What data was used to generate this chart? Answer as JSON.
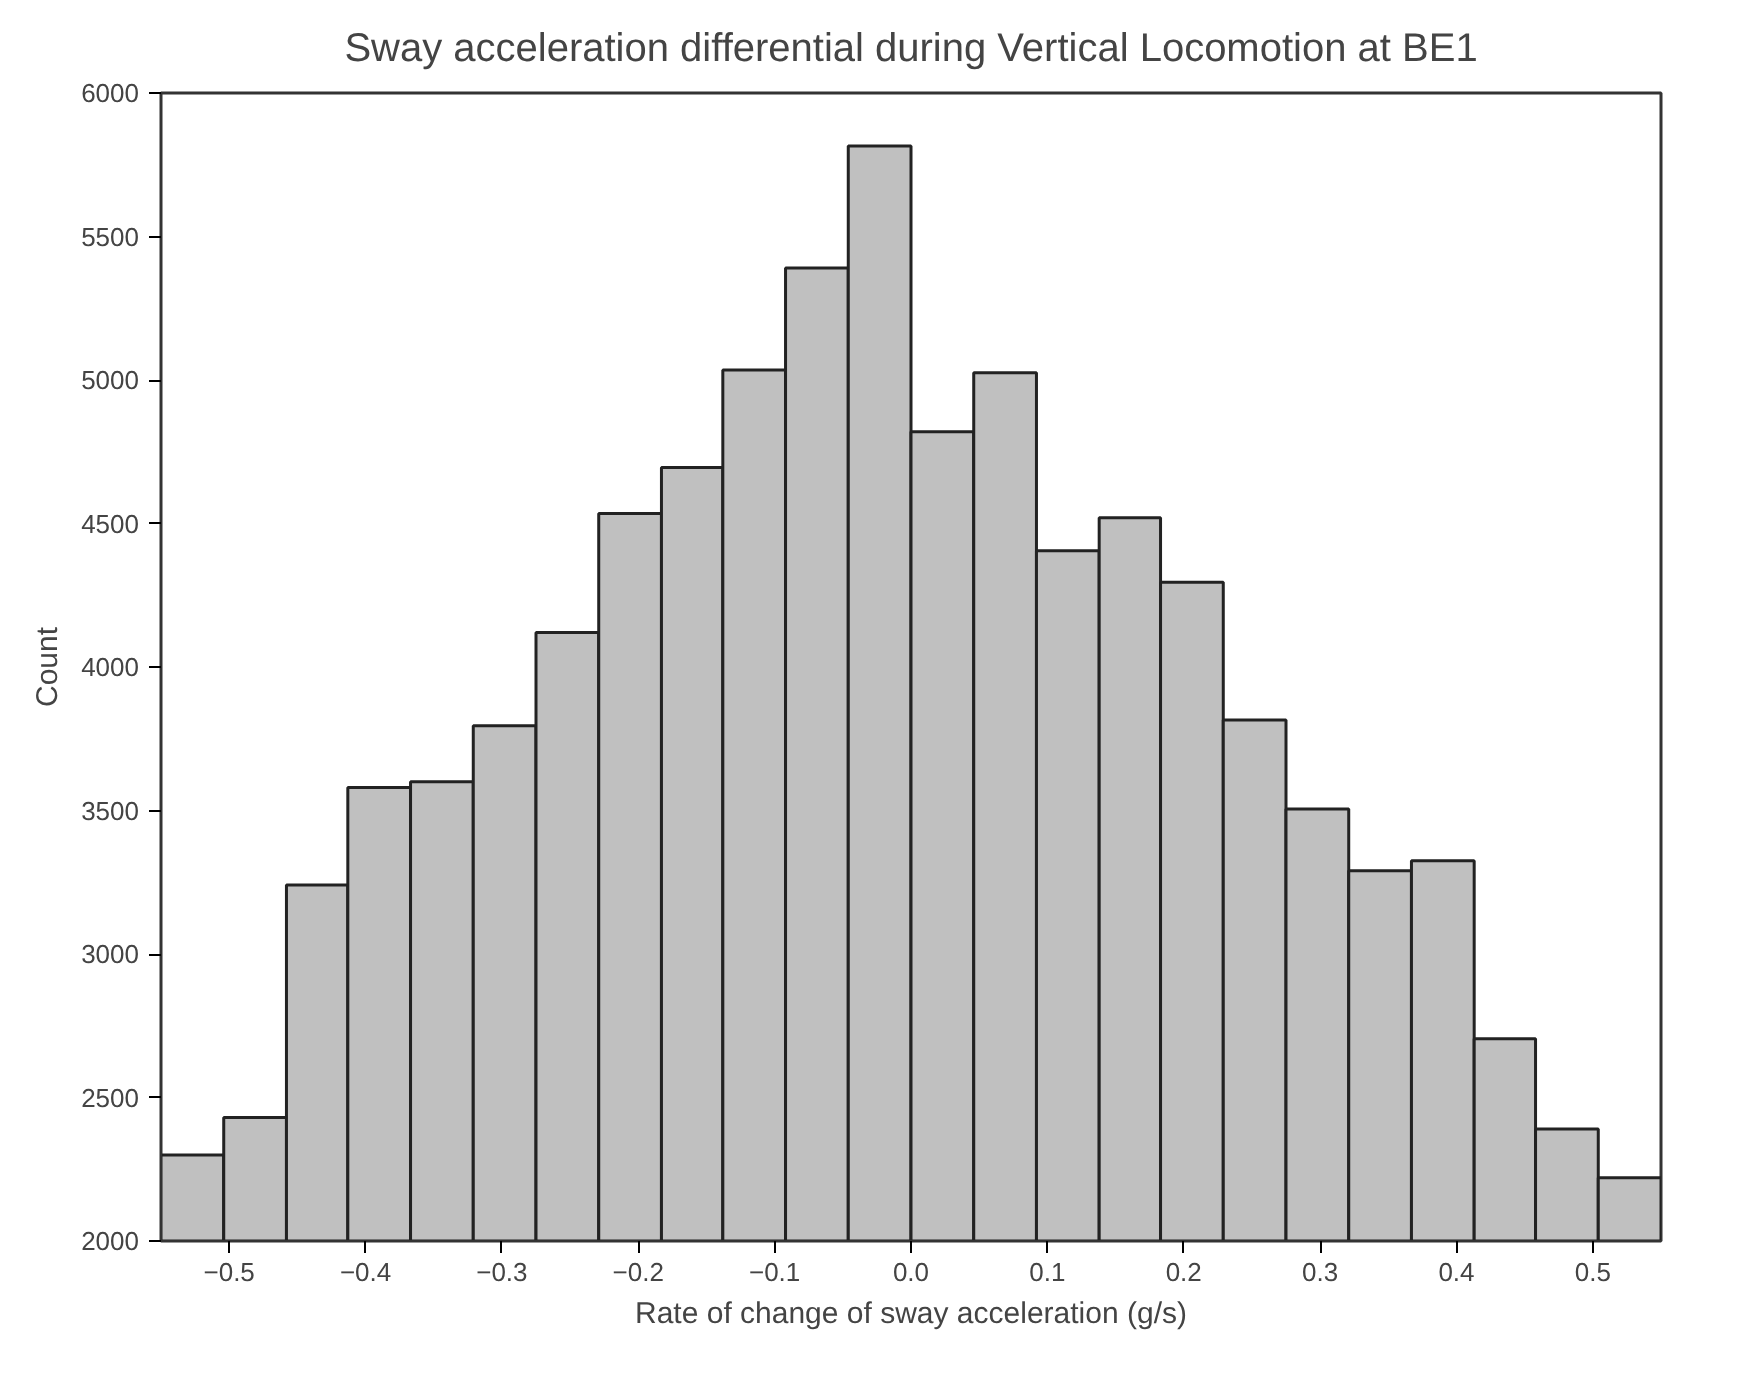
{
  "chart_data": {
    "type": "histogram",
    "title": "Sway acceleration differential during Vertical Locomotion at BE1",
    "xlabel": "Rate of change of sway acceleration (g/s)",
    "ylabel": "Count",
    "bins": [
      -0.55,
      -0.504,
      -0.458,
      -0.413,
      -0.367,
      -0.321,
      -0.275,
      -0.229,
      -0.183,
      -0.138,
      -0.092,
      -0.046,
      0.0,
      0.046,
      0.092,
      0.138,
      0.183,
      0.229,
      0.275,
      0.321,
      0.367,
      0.413,
      0.458,
      0.504,
      0.55
    ],
    "values": [
      2300,
      2430,
      3240,
      3580,
      3600,
      3795,
      4120,
      4535,
      4695,
      5035,
      5390,
      5815,
      4820,
      5025,
      4405,
      4520,
      4295,
      3815,
      3505,
      3290,
      3325,
      2705,
      2390,
      2220
    ],
    "color": "#c0c0c0",
    "xlim": [
      -0.55,
      0.55
    ],
    "ylim": [
      2000,
      6000
    ],
    "xticks": [
      {
        "value": -0.5,
        "label": "−0.5"
      },
      {
        "value": -0.4,
        "label": "−0.4"
      },
      {
        "value": -0.3,
        "label": "−0.3"
      },
      {
        "value": -0.2,
        "label": "−0.2"
      },
      {
        "value": -0.1,
        "label": "−0.1"
      },
      {
        "value": 0.0,
        "label": "0.0"
      },
      0.1,
      0.2,
      0.3,
      0.4,
      0.5
    ],
    "yticks": [
      2000,
      2500,
      3000,
      3500,
      4000,
      4500,
      5000,
      5500,
      6000
    ],
    "grid": false
  }
}
